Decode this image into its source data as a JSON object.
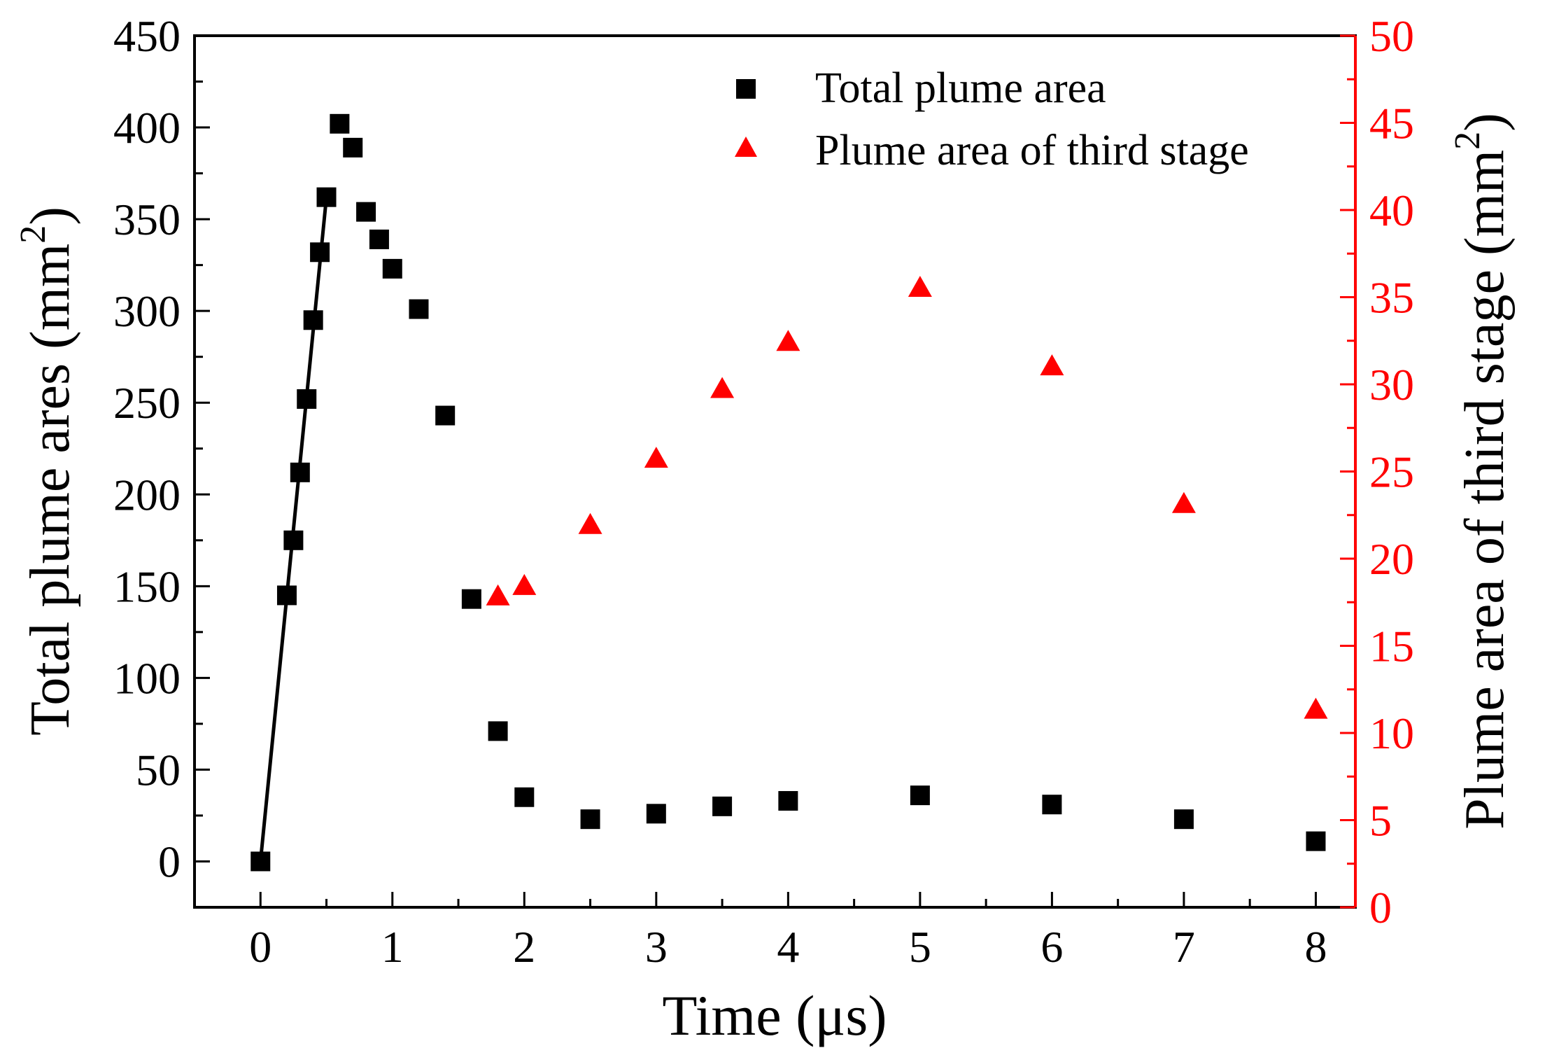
{
  "chart_data": {
    "type": "scatter",
    "xlabel": "Time (μs)",
    "ylabel_left": "Total plume ares (mm",
    "ylabel_left_sup": "2",
    "ylabel_left_close": ")",
    "ylabel_right": "Plume area of third stage (mm",
    "ylabel_right_sup": "2",
    "ylabel_right_close": ")",
    "xlim": [
      -0.5,
      8.3
    ],
    "ylim_left": [
      -25,
      450
    ],
    "ylim_right": [
      0,
      50
    ],
    "x_ticks": [
      0,
      1,
      2,
      3,
      4,
      5,
      6,
      7,
      8
    ],
    "y_left_ticks": [
      0,
      50,
      100,
      150,
      200,
      250,
      300,
      350,
      400,
      450
    ],
    "y_right_ticks": [
      0,
      5,
      10,
      15,
      20,
      25,
      30,
      35,
      40,
      45,
      50
    ],
    "colors": {
      "left_axis": "#000000",
      "right_axis": "#ff0000",
      "series1": "#000000",
      "series2": "#ff0000"
    },
    "legend_position": "top-right",
    "series": [
      {
        "name": "Total plume area",
        "marker": "square",
        "axis": "left",
        "x": [
          0,
          0.2,
          0.25,
          0.3,
          0.35,
          0.4,
          0.45,
          0.5,
          0.6,
          0.7,
          0.8,
          0.9,
          1.0,
          1.2,
          1.4,
          1.6,
          1.8,
          2.0,
          2.5,
          3.0,
          3.5,
          4.0,
          5.0,
          6.0,
          7.0,
          8.0
        ],
        "y": [
          0,
          145,
          175,
          212,
          252,
          295,
          332,
          362,
          402,
          389,
          354,
          339,
          323,
          301,
          243,
          143,
          71,
          35,
          23,
          26,
          30,
          33,
          36,
          31,
          23,
          11
        ]
      },
      {
        "name": "Plume area of third stage",
        "marker": "triangle",
        "axis": "right",
        "x": [
          1.8,
          2.0,
          2.5,
          3.0,
          3.5,
          4.0,
          5.0,
          6.0,
          7.0,
          8.0
        ],
        "y": [
          17.8,
          18.4,
          21.9,
          25.7,
          29.7,
          32.4,
          35.5,
          31.0,
          23.1,
          11.3
        ]
      }
    ],
    "fit_line": {
      "name": "linear fit",
      "x": [
        0,
        0.5
      ],
      "y": [
        0,
        362
      ],
      "axis": "left"
    }
  }
}
